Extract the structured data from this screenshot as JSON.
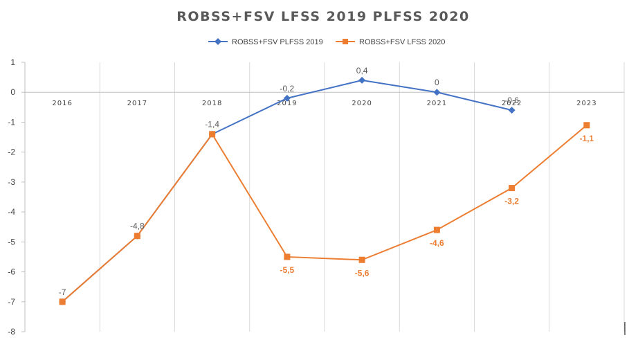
{
  "colors": {
    "series_a": "#4472C4",
    "series_b": "#ED7D31",
    "grid": "#D9D9D9",
    "axis": "#BFBFBF"
  },
  "chart_data": {
    "type": "line",
    "title": "ROBSS+FSV LFSS 2019 PLFSS 2020",
    "xlabel": "",
    "ylabel": "",
    "categories": [
      "2016",
      "2017",
      "2018",
      "2019",
      "2020",
      "2021",
      "2022",
      "2023"
    ],
    "ylim": [
      -8,
      1
    ],
    "yticks": [
      1,
      0,
      -1,
      -2,
      -3,
      -4,
      -5,
      -6,
      -7,
      -8
    ],
    "grid": "vertical",
    "legend_position": "top",
    "series": [
      {
        "name": "ROBSS+FSV PLFSS 2019",
        "marker": "diamond",
        "values": [
          -7,
          -4.8,
          -1.4,
          -0.2,
          0.4,
          0,
          -0.6,
          null
        ],
        "labels": [
          "-7",
          "-4,8",
          "-1,4",
          "-0,2",
          "0,4",
          "0",
          "-0,6",
          ""
        ]
      },
      {
        "name": "ROBSS+FSV LFSS 2020",
        "marker": "square",
        "values": [
          -7,
          -4.8,
          -1.4,
          -5.5,
          -5.6,
          -4.6,
          -3.2,
          -1.1
        ],
        "labels": [
          "",
          "",
          "",
          "-5,5",
          "-5,6",
          "-4,6",
          "-3,2",
          "-1,1"
        ]
      }
    ]
  }
}
